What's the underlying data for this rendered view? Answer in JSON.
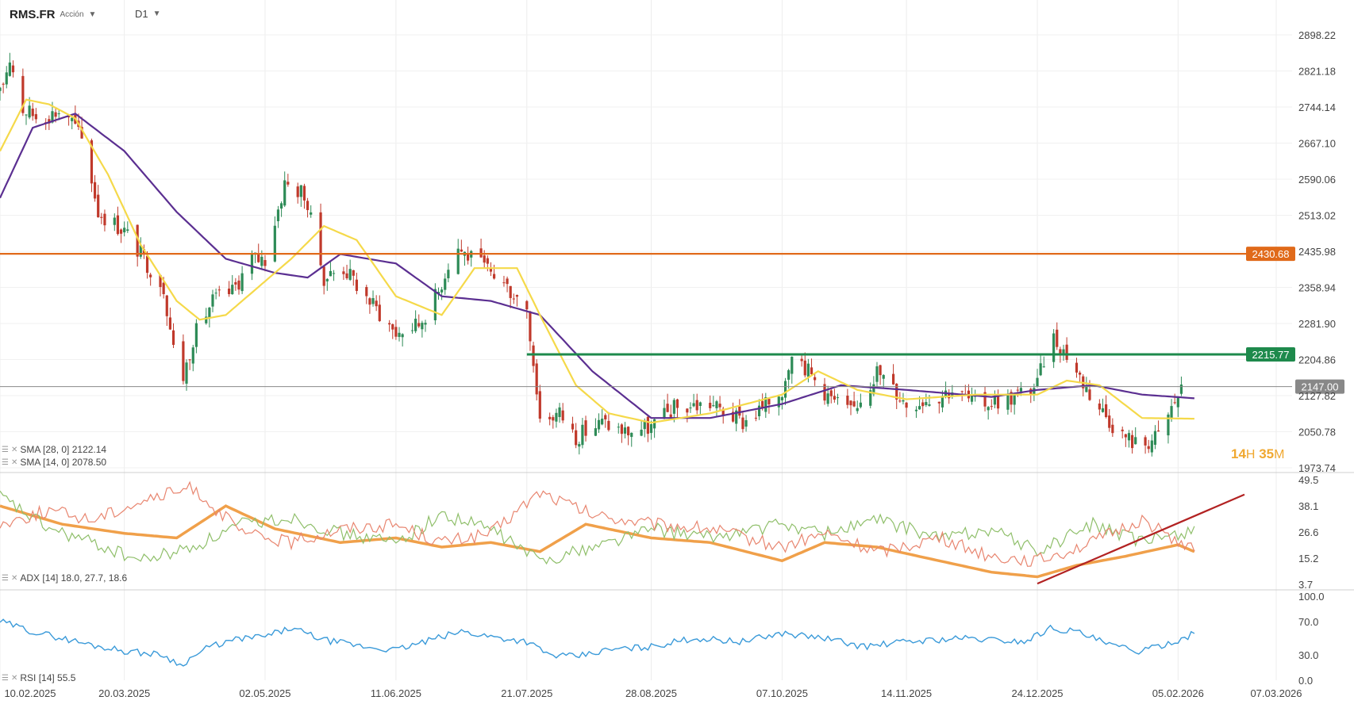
{
  "header": {
    "symbol": "RMS.FR",
    "type": "Acción",
    "timeframe": "D1"
  },
  "timer": {
    "h": "14",
    "h_unit": "H",
    "m": "35",
    "m_unit": "M"
  },
  "legends": {
    "sma28": "SMA [28, 0] 2122.14",
    "sma14": "SMA [14, 0] 2078.50",
    "adx": "ADX [14] 18.0, 27.7, 18.6",
    "rsi": "RSI [14] 55.5"
  },
  "colors": {
    "up": "#2e8b57",
    "down": "#c0392b",
    "sma28": "#5b2f91",
    "sma14": "#f5d94a",
    "resistance": "#e06a1a",
    "support": "#1e8a4c",
    "last": "#888888",
    "adx": "#f0a04a",
    "di_plus": "#8fbf6a",
    "di_minus": "#e8856f",
    "rsi": "#3a9ad9",
    "trend": "#b22222"
  },
  "chart_data": [
    {
      "type": "candlestick",
      "title": "RMS.FR",
      "y_ticks": [
        "2898.22",
        "2821.18",
        "2744.14",
        "2667.10",
        "2590.06",
        "2513.02",
        "2435.98",
        "2358.94",
        "2281.90",
        "2204.86",
        "2127.82",
        "2050.78",
        "1973.74"
      ],
      "ylim": [
        1973.74,
        2898.22
      ],
      "x_ticks": [
        "10.02.2025",
        "20.03.2025",
        "02.05.2025",
        "11.06.2025",
        "21.07.2025",
        "28.08.2025",
        "07.10.2025",
        "14.11.2025",
        "24.12.2025",
        "05.02.2026",
        "07.03.2026"
      ],
      "lines": [
        {
          "label": "2430.68",
          "value": 2430.68,
          "color": "#e06a1a"
        },
        {
          "label": "2215.77",
          "value": 2215.77,
          "color": "#1e8a4c",
          "start": "21.07.2025"
        },
        {
          "label": "2147.00",
          "value": 2147.0,
          "color": "#888888"
        }
      ],
      "close_path": [
        [
          "10.02.2025",
          2770
        ],
        [
          "13.02.2025",
          2850
        ],
        [
          "17.02.2025",
          2740
        ],
        [
          "22.02.2025",
          2720
        ],
        [
          "02.03.2025",
          2740
        ],
        [
          "08.03.2025",
          2660
        ],
        [
          "12.03.2025",
          2520
        ],
        [
          "20.03.2025",
          2480
        ],
        [
          "26.03.2025",
          2420
        ],
        [
          "01.04.2025",
          2360
        ],
        [
          "06.04.2025",
          2140
        ],
        [
          "10.04.2025",
          2250
        ],
        [
          "16.04.2025",
          2330
        ],
        [
          "22.04.2025",
          2350
        ],
        [
          "28.04.2025",
          2420
        ],
        [
          "02.05.2025",
          2420
        ],
        [
          "08.05.2025",
          2580
        ],
        [
          "14.05.2025",
          2560
        ],
        [
          "20.05.2025",
          2380
        ],
        [
          "26.05.2025",
          2400
        ],
        [
          "03.06.2025",
          2330
        ],
        [
          "11.06.2025",
          2260
        ],
        [
          "18.06.2025",
          2280
        ],
        [
          "24.06.2025",
          2350
        ],
        [
          "29.06.2025",
          2450
        ],
        [
          "04.07.2025",
          2420
        ],
        [
          "12.07.2025",
          2380
        ],
        [
          "21.07.2025",
          2320
        ],
        [
          "25.07.2025",
          2080
        ],
        [
          "31.07.2025",
          2090
        ],
        [
          "05.08.2025",
          2040
        ],
        [
          "13.08.2025",
          2070
        ],
        [
          "20.08.2025",
          2050
        ],
        [
          "28.08.2025",
          2060
        ],
        [
          "04.09.2025",
          2100
        ],
        [
          "15.09.2025",
          2110
        ],
        [
          "25.09.2025",
          2070
        ],
        [
          "01.10.2025",
          2100
        ],
        [
          "07.10.2025",
          2140
        ],
        [
          "10.10.2025",
          2230
        ],
        [
          "16.10.2025",
          2170
        ],
        [
          "22.10.2025",
          2120
        ],
        [
          "28.10.2025",
          2090
        ],
        [
          "05.11.2025",
          2180
        ],
        [
          "14.11.2025",
          2110
        ],
        [
          "20.11.2025",
          2120
        ],
        [
          "28.11.2025",
          2140
        ],
        [
          "05.12.2025",
          2110
        ],
        [
          "15.12.2025",
          2120
        ],
        [
          "24.12.2025",
          2150
        ],
        [
          "28.12.2025",
          2260
        ],
        [
          "02.01.2026",
          2215
        ],
        [
          "10.01.2026",
          2120
        ],
        [
          "18.01.2026",
          2050
        ],
        [
          "24.01.2026",
          2020
        ],
        [
          "30.01.2026",
          2040
        ],
        [
          "05.02.2026",
          2130
        ],
        [
          "08.02.2026",
          2150
        ]
      ],
      "sma14": [
        [
          "10.02.2025",
          2650
        ],
        [
          "18.02.2025",
          2760
        ],
        [
          "25.02.2025",
          2750
        ],
        [
          "05.03.2025",
          2720
        ],
        [
          "15.03.2025",
          2600
        ],
        [
          "25.03.2025",
          2450
        ],
        [
          "05.04.2025",
          2330
        ],
        [
          "12.04.2025",
          2290
        ],
        [
          "20.04.2025",
          2300
        ],
        [
          "30.04.2025",
          2360
        ],
        [
          "10.05.2025",
          2420
        ],
        [
          "20.05.2025",
          2490
        ],
        [
          "30.05.2025",
          2460
        ],
        [
          "11.06.2025",
          2340
        ],
        [
          "25.06.2025",
          2300
        ],
        [
          "05.07.2025",
          2400
        ],
        [
          "18.07.2025",
          2400
        ],
        [
          "25.07.2025",
          2300
        ],
        [
          "05.08.2025",
          2150
        ],
        [
          "15.08.2025",
          2090
        ],
        [
          "28.08.2025",
          2070
        ],
        [
          "15.09.2025",
          2090
        ],
        [
          "07.10.2025",
          2130
        ],
        [
          "18.10.2025",
          2180
        ],
        [
          "30.10.2025",
          2140
        ],
        [
          "14.11.2025",
          2120
        ],
        [
          "05.12.2025",
          2130
        ],
        [
          "24.12.2025",
          2130
        ],
        [
          "02.01.2026",
          2160
        ],
        [
          "12.01.2026",
          2150
        ],
        [
          "25.01.2026",
          2080
        ],
        [
          "10.02.2026",
          2078.5
        ]
      ],
      "sma28": [
        [
          "10.02.2025",
          2550
        ],
        [
          "20.02.2025",
          2700
        ],
        [
          "05.03.2025",
          2730
        ],
        [
          "20.03.2025",
          2650
        ],
        [
          "05.04.2025",
          2520
        ],
        [
          "20.04.2025",
          2420
        ],
        [
          "05.05.2025",
          2390
        ],
        [
          "15.05.2025",
          2380
        ],
        [
          "25.05.2025",
          2430
        ],
        [
          "11.06.2025",
          2410
        ],
        [
          "25.06.2025",
          2340
        ],
        [
          "10.07.2025",
          2330
        ],
        [
          "25.07.2025",
          2300
        ],
        [
          "10.08.2025",
          2180
        ],
        [
          "28.08.2025",
          2080
        ],
        [
          "15.09.2025",
          2080
        ],
        [
          "07.10.2025",
          2110
        ],
        [
          "25.10.2025",
          2150
        ],
        [
          "14.11.2025",
          2140
        ],
        [
          "10.12.2025",
          2125
        ],
        [
          "24.12.2025",
          2140
        ],
        [
          "10.01.2026",
          2150
        ],
        [
          "25.01.2026",
          2130
        ],
        [
          "10.02.2026",
          2122.14
        ]
      ]
    },
    {
      "type": "line",
      "title": "ADX [14] 18.0, 27.7, 18.6",
      "y_ticks": [
        "49.5",
        "38.1",
        "26.6",
        "15.2",
        "3.7"
      ],
      "ylim": [
        3.7,
        49.5
      ],
      "series": [
        {
          "name": "ADX",
          "values": [
            [
              "10.02.2025",
              38
            ],
            [
              "01.03.2025",
              30
            ],
            [
              "20.03.2025",
              26
            ],
            [
              "05.04.2025",
              24
            ],
            [
              "20.04.2025",
              38
            ],
            [
              "05.05.2025",
              28
            ],
            [
              "25.05.2025",
              22
            ],
            [
              "11.06.2025",
              24
            ],
            [
              "25.06.2025",
              20
            ],
            [
              "10.07.2025",
              22
            ],
            [
              "25.07.2025",
              18
            ],
            [
              "08.08.2025",
              30
            ],
            [
              "28.08.2025",
              24
            ],
            [
              "15.09.2025",
              22
            ],
            [
              "07.10.2025",
              14
            ],
            [
              "20.10.2025",
              22
            ],
            [
              "05.11.2025",
              20
            ],
            [
              "24.11.2025",
              14
            ],
            [
              "10.12.2025",
              9
            ],
            [
              "24.12.2025",
              7
            ],
            [
              "05.01.2026",
              12
            ],
            [
              "20.01.2026",
              16
            ],
            [
              "05.02.2026",
              21
            ],
            [
              "10.02.2026",
              18.0
            ]
          ]
        },
        {
          "name": "DI+",
          "values": [
            [
              "10.02.2025",
              42
            ],
            [
              "25.02.2025",
              28
            ],
            [
              "10.03.2025",
              22
            ],
            [
              "25.03.2025",
              14
            ],
            [
              "10.04.2025",
              20
            ],
            [
              "25.04.2025",
              30
            ],
            [
              "10.05.2025",
              33
            ],
            [
              "25.05.2025",
              26
            ],
            [
              "11.06.2025",
              22
            ],
            [
              "25.06.2025",
              34
            ],
            [
              "10.07.2025",
              28
            ],
            [
              "25.07.2025",
              14
            ],
            [
              "10.08.2025",
              20
            ],
            [
              "28.08.2025",
              28
            ],
            [
              "15.09.2025",
              24
            ],
            [
              "07.10.2025",
              30
            ],
            [
              "20.10.2025",
              26
            ],
            [
              "05.11.2025",
              32
            ],
            [
              "24.11.2025",
              24
            ],
            [
              "10.12.2025",
              28
            ],
            [
              "24.12.2025",
              18
            ],
            [
              "10.01.2026",
              30
            ],
            [
              "25.01.2026",
              22
            ],
            [
              "10.02.2026",
              27.7
            ]
          ]
        },
        {
          "name": "DI-",
          "values": [
            [
              "10.02.2025",
              30
            ],
            [
              "25.02.2025",
              36
            ],
            [
              "10.03.2025",
              32
            ],
            [
              "25.03.2025",
              40
            ],
            [
              "10.04.2025",
              46
            ],
            [
              "25.04.2025",
              26
            ],
            [
              "10.05.2025",
              22
            ],
            [
              "25.05.2025",
              28
            ],
            [
              "11.06.2025",
              30
            ],
            [
              "25.06.2025",
              22
            ],
            [
              "10.07.2025",
              26
            ],
            [
              "25.07.2025",
              44
            ],
            [
              "10.08.2025",
              34
            ],
            [
              "28.08.2025",
              30
            ],
            [
              "15.09.2025",
              28
            ],
            [
              "07.10.2025",
              20
            ],
            [
              "20.10.2025",
              26
            ],
            [
              "05.11.2025",
              18
            ],
            [
              "24.11.2025",
              24
            ],
            [
              "10.12.2025",
              16
            ],
            [
              "24.12.2025",
              14
            ],
            [
              "10.01.2026",
              22
            ],
            [
              "25.01.2026",
              32
            ],
            [
              "10.02.2026",
              18.6
            ]
          ]
        }
      ],
      "trendline": [
        [
          "24.12.2025",
          4
        ],
        [
          "07.03.2026",
          43
        ]
      ]
    },
    {
      "type": "line",
      "title": "RSI [14] 55.5",
      "y_ticks": [
        "100.0",
        "70.0",
        "30.0",
        "0.0"
      ],
      "ylim": [
        0,
        100
      ],
      "series": [
        {
          "name": "RSI",
          "values": [
            [
              "10.02.2025",
              70
            ],
            [
              "20.02.2025",
              58
            ],
            [
              "01.03.2025",
              50
            ],
            [
              "10.03.2025",
              42
            ],
            [
              "20.03.2025",
              35
            ],
            [
              "01.04.2025",
              30
            ],
            [
              "06.04.2025",
              18
            ],
            [
              "15.04.2025",
              40
            ],
            [
              "25.04.2025",
              50
            ],
            [
              "02.05.2025",
              52
            ],
            [
              "10.05.2025",
              62
            ],
            [
              "20.05.2025",
              48
            ],
            [
              "01.06.2025",
              40
            ],
            [
              "11.06.2025",
              36
            ],
            [
              "20.06.2025",
              46
            ],
            [
              "01.07.2025",
              58
            ],
            [
              "10.07.2025",
              52
            ],
            [
              "21.07.2025",
              46
            ],
            [
              "28.07.2025",
              30
            ],
            [
              "05.08.2025",
              28
            ],
            [
              "15.08.2025",
              36
            ],
            [
              "28.08.2025",
              40
            ],
            [
              "10.09.2025",
              50
            ],
            [
              "25.09.2025",
              46
            ],
            [
              "07.10.2025",
              56
            ],
            [
              "20.10.2025",
              50
            ],
            [
              "01.11.2025",
              40
            ],
            [
              "14.11.2025",
              46
            ],
            [
              "01.12.2025",
              50
            ],
            [
              "20.12.2025",
              46
            ],
            [
              "28.12.2025",
              62
            ],
            [
              "05.01.2026",
              58
            ],
            [
              "15.01.2026",
              42
            ],
            [
              "25.01.2026",
              34
            ],
            [
              "05.02.2026",
              48
            ],
            [
              "10.02.2026",
              55.5
            ]
          ]
        }
      ]
    }
  ]
}
